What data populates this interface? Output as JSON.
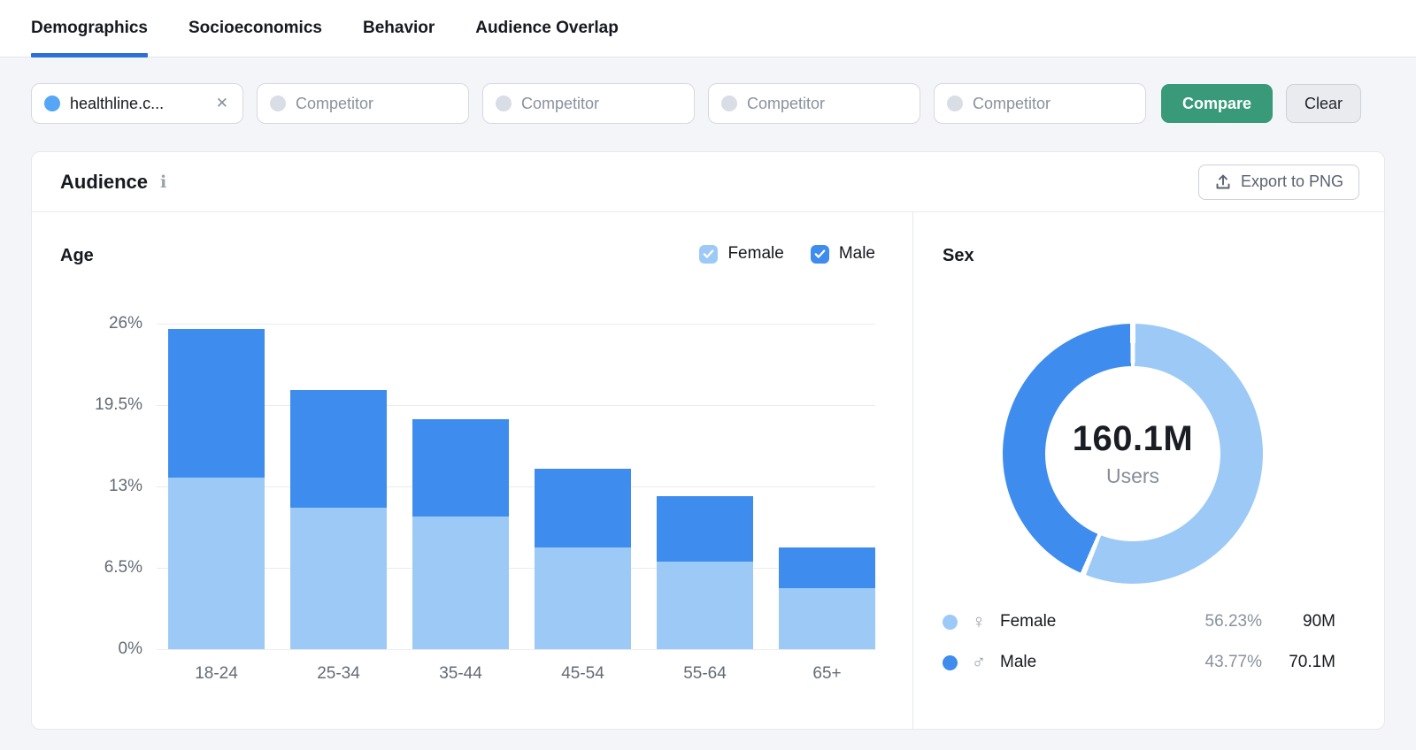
{
  "tabs": {
    "items": [
      "Demographics",
      "Socioeconomics",
      "Behavior",
      "Audience Overlap"
    ],
    "active": "Demographics",
    "accent_color": "#2D6FD9"
  },
  "filters": {
    "domain": {
      "label": "healthline.c...",
      "dot_color": "#55A6F4",
      "close_icon": "✕"
    },
    "competitor_placeholder": "Competitor",
    "competitor_dot_color": "#D9DDE5",
    "compare_label": "Compare",
    "compare_color": "#389A78",
    "clear_label": "Clear"
  },
  "audience": {
    "title": "Audience",
    "info_icon": "i",
    "export_label": "Export to PNG"
  },
  "chart_data": [
    {
      "type": "bar",
      "stacked": true,
      "title": "Age",
      "categories": [
        "18-24",
        "25-34",
        "35-44",
        "45-54",
        "55-64",
        "65+"
      ],
      "series": [
        {
          "name": "Female",
          "color": "#9DC9F7",
          "values": [
            13.7,
            11.3,
            10.6,
            8.1,
            7.0,
            4.9
          ]
        },
        {
          "name": "Male",
          "color": "#3E8CEE",
          "values": [
            11.9,
            9.4,
            7.8,
            6.3,
            5.2,
            3.2
          ]
        }
      ],
      "unit": "%",
      "ylim": [
        0,
        26
      ],
      "yticks": [
        "26%",
        "19.5%",
        "13%",
        "6.5%",
        "0%"
      ],
      "grid": true,
      "legend_position": "top-right"
    },
    {
      "type": "pie",
      "title": "Sex",
      "center_value": "160.1M",
      "center_label": "Users",
      "slices": [
        {
          "label": "Female",
          "symbol": "♀",
          "percent": 56.23,
          "percent_label": "56.23%",
          "value": "90M",
          "color": "#9DC9F7"
        },
        {
          "label": "Male",
          "symbol": "♂",
          "percent": 43.77,
          "percent_label": "43.77%",
          "value": "70.1M",
          "color": "#3E8CEE"
        }
      ],
      "legend_position": "bottom"
    }
  ]
}
